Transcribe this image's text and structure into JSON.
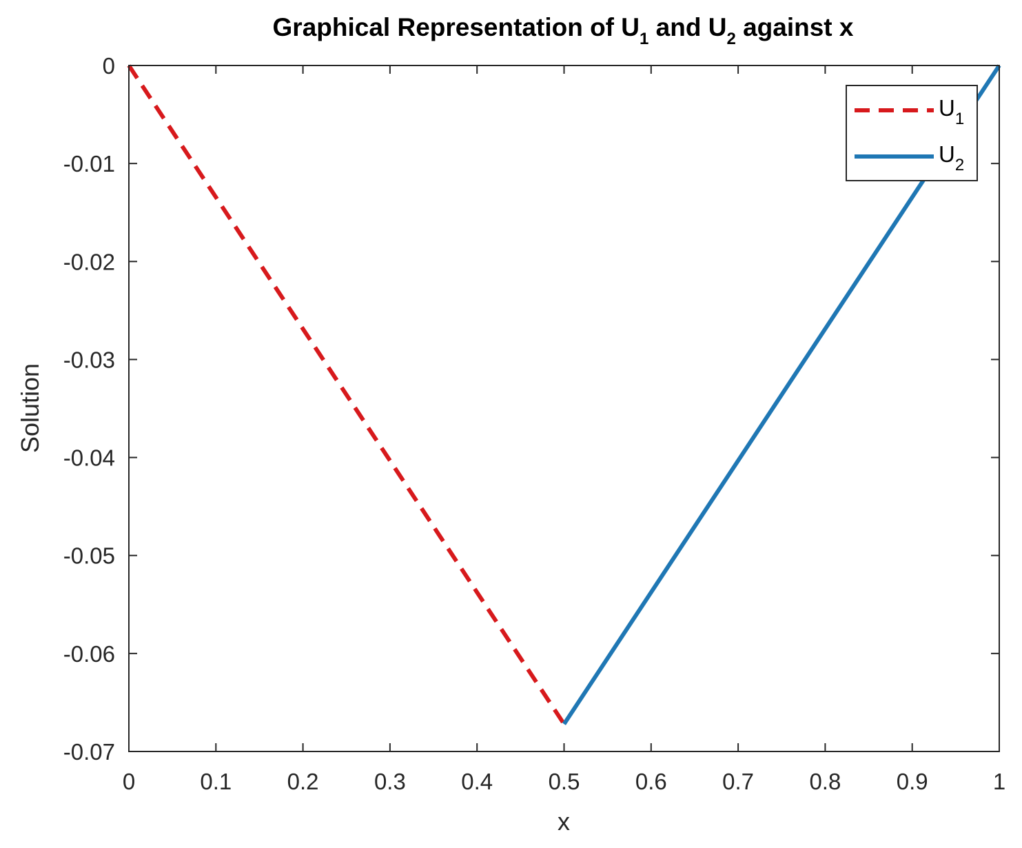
{
  "chart_data": {
    "type": "line",
    "title": {
      "prefix": "Graphical Representation of U",
      "sub1": "1",
      "middle": " and U",
      "sub2": "2",
      "suffix": " against x"
    },
    "xlabel": "x",
    "ylabel": "Solution",
    "xlim": [
      0,
      1
    ],
    "ylim": [
      -0.07,
      0
    ],
    "x_ticks": [
      0,
      0.1,
      0.2,
      0.3,
      0.4,
      0.5,
      0.6,
      0.7,
      0.8,
      0.9,
      1
    ],
    "x_tick_labels": [
      "0",
      "0.1",
      "0.2",
      "0.3",
      "0.4",
      "0.5",
      "0.6",
      "0.7",
      "0.8",
      "0.9",
      "1"
    ],
    "y_ticks": [
      0,
      -0.01,
      -0.02,
      -0.03,
      -0.04,
      -0.05,
      -0.06,
      -0.07
    ],
    "y_tick_labels": [
      "0",
      "-0.01",
      "-0.02",
      "-0.03",
      "-0.04",
      "-0.05",
      "-0.06",
      "-0.07"
    ],
    "grid": false,
    "legend_position": "top-right",
    "series": [
      {
        "name": "U",
        "subscript": "1",
        "style": "dashed",
        "color": "#d7191c",
        "x": [
          0,
          0.5
        ],
        "y": [
          0,
          -0.0672
        ]
      },
      {
        "name": "U",
        "subscript": "2",
        "style": "solid",
        "color": "#1f77b4",
        "x": [
          0.5,
          1
        ],
        "y": [
          -0.0672,
          0
        ]
      }
    ]
  }
}
